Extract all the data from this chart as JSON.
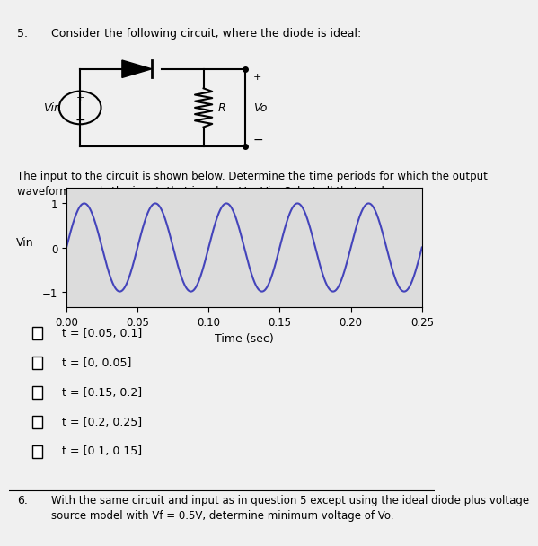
{
  "title_number": "5.",
  "title_text": "Consider the following circuit, where the diode is ideal:",
  "graph_ylabel": "Vin",
  "graph_xlabel": "Time (sec)",
  "graph_ylim": [
    -1.35,
    1.35
  ],
  "graph_xlim": [
    0,
    0.25
  ],
  "graph_yticks": [
    -1,
    0,
    1
  ],
  "graph_xticks": [
    0,
    0.05,
    0.1,
    0.15,
    0.2,
    0.25
  ],
  "sine_amplitude": 1,
  "sine_frequency": 20,
  "sine_color": "#4444bb",
  "sine_linewidth": 1.5,
  "background_color": "#f0f0f0",
  "plot_bg_color": "#dcdcdc",
  "choices": [
    "t = [0.05, 0.1]",
    "t = [0, 0.05]",
    "t = [0.15, 0.2]",
    "t = [0.2, 0.25]",
    "t = [0.1, 0.15]"
  ],
  "bottom_number": "6.",
  "bottom_line1": "With the same circuit and input as in question 5 except using the ideal diode plus voltage",
  "bottom_line2": "source model with Vf = 0.5V, determine minimum voltage of Vo."
}
